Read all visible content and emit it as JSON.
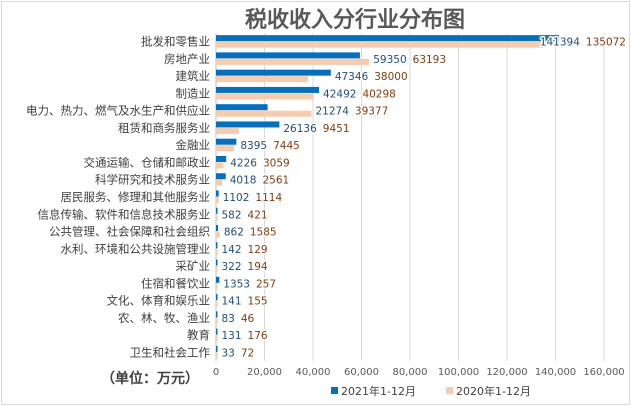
{
  "chart_data": {
    "type": "bar",
    "orientation": "horizontal",
    "title": "税收收入分行业分布图",
    "unit_note": "（单位：万元）",
    "categories": [
      "批发和零售业",
      "房地产业",
      "建筑业",
      "制造业",
      "电力、热力、燃气及水生产和供应业",
      "租赁和商务服务业",
      "金融业",
      "交通运输、仓储和邮政业",
      "科学研究和技术服务业",
      "居民服务、修理和其他服务业",
      "信息传输、软件和信息技术服务业",
      "公共管理、社会保障和社会组织",
      "水利、环境和公共设施管理业",
      "采矿业",
      "住宿和餐饮业",
      "文化、体育和娱乐业",
      "农、林、牧、渔业",
      "教育",
      "卫生和社会工作"
    ],
    "series": [
      {
        "name": "2021年1-12月",
        "color": "#0070c0",
        "values": [
          141394,
          59350,
          47346,
          42492,
          21274,
          26136,
          8395,
          4226,
          4018,
          1102,
          582,
          862,
          142,
          322,
          1353,
          141,
          83,
          131,
          33
        ]
      },
      {
        "name": "2020年1-12月",
        "color": "#f8cbad",
        "values": [
          135072,
          63193,
          38000,
          40298,
          39377,
          9451,
          7445,
          3059,
          2561,
          1114,
          421,
          1585,
          129,
          194,
          257,
          155,
          46,
          176,
          72
        ]
      }
    ],
    "xlim": [
      0,
      160000
    ],
    "xticks": [
      "0",
      "20,000",
      "40,000",
      "60,000",
      "80,000",
      "100,000",
      "120,000",
      "140,000",
      "160,000"
    ],
    "grid": true,
    "legend_position": "bottom"
  }
}
